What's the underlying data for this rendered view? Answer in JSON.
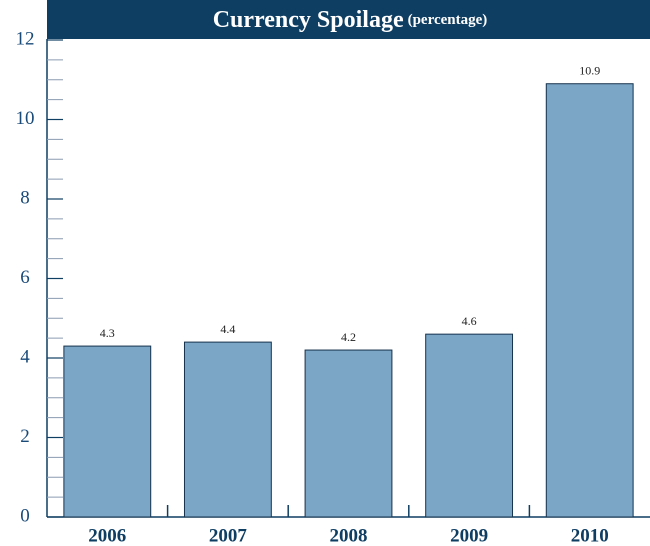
{
  "chart_data": {
    "type": "bar",
    "title": "Currency Spoilage",
    "subtitle": "(percentage)",
    "categories": [
      "2006",
      "2007",
      "2008",
      "2009",
      "2010"
    ],
    "values": [
      4.3,
      4.4,
      4.2,
      4.6,
      10.9
    ],
    "color": "#7ba6c6",
    "ylim": [
      0,
      12
    ],
    "yticks": [
      0,
      2,
      4,
      6,
      8,
      10,
      12
    ],
    "yticks_minor": [
      0.5,
      1,
      1.5,
      2.5,
      3,
      3.5,
      4.5,
      5,
      5.5,
      6.5,
      7,
      7.5,
      8.5,
      9,
      9.5,
      10.5,
      11,
      11.5
    ],
    "grid": false
  }
}
